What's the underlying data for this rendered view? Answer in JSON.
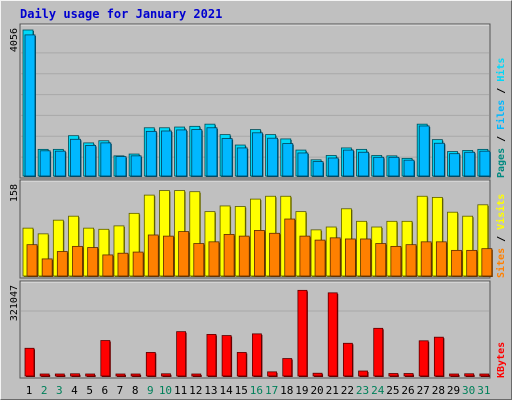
{
  "chart_data": {
    "title": "Daily usage for January 2021",
    "type": "bar",
    "categories": [
      "1",
      "2",
      "3",
      "4",
      "5",
      "6",
      "7",
      "8",
      "9",
      "10",
      "11",
      "12",
      "13",
      "14",
      "15",
      "16",
      "17",
      "18",
      "19",
      "20",
      "21",
      "22",
      "23",
      "24",
      "25",
      "26",
      "27",
      "28",
      "29",
      "30",
      "31"
    ],
    "weekend_days": [
      "2",
      "3",
      "9",
      "10",
      "16",
      "17",
      "23",
      "24",
      "30",
      "31"
    ],
    "panels": [
      {
        "id": "hits-files",
        "max_label": "4056",
        "ylim": [
          0,
          4056
        ],
        "legend": [
          "Pages",
          "Files",
          "Hits"
        ],
        "legend_sep": "/",
        "series": [
          {
            "name": "Hits",
            "color": "#00d8f8",
            "values": [
              4056,
              740,
              740,
              1120,
              920,
              980,
              560,
              610,
              1340,
              1340,
              1360,
              1380,
              1440,
              1150,
              860,
              1290,
              1150,
              1030,
              720,
              450,
              570,
              780,
              740,
              570,
              560,
              490,
              1440,
              1010,
              680,
              710,
              740
            ]
          },
          {
            "name": "Files",
            "color": "#00b8ff",
            "values": [
              3920,
              700,
              690,
              1020,
              850,
              920,
              540,
              560,
              1240,
              1250,
              1280,
              1290,
              1340,
              1040,
              780,
              1200,
              1050,
              900,
              640,
              400,
              500,
              720,
              660,
              520,
              520,
              440,
              1390,
              910,
              620,
              660,
              690
            ]
          },
          {
            "name": "Pages",
            "color": "#008a80",
            "values": [
              0,
              0,
              0,
              0,
              0,
              0,
              0,
              0,
              0,
              0,
              0,
              0,
              0,
              0,
              0,
              0,
              0,
              0,
              0,
              0,
              0,
              0,
              0,
              0,
              0,
              0,
              0,
              0,
              0,
              0,
              0
            ]
          }
        ]
      },
      {
        "id": "visits-sites",
        "max_label": "158",
        "ylim": [
          0,
          158
        ],
        "legend": [
          "Sites",
          "Visits"
        ],
        "legend_sep": "/",
        "series": [
          {
            "name": "Visits",
            "color": "#ffff00",
            "values": [
              84,
              74,
              98,
              105,
              84,
              82,
              88,
              110,
              142,
              150,
              150,
              148,
              113,
              123,
              122,
              135,
              140,
              140,
              113,
              81,
              86,
              118,
              96,
              86,
              96,
              96,
              140,
              138,
              112,
              105,
              125
            ]
          },
          {
            "name": "Sites",
            "color": "#ff8000",
            "values": [
              55,
              30,
              43,
              52,
              50,
              37,
              40,
              42,
              72,
              70,
              78,
              57,
              60,
              73,
              70,
              80,
              75,
              100,
              70,
              63,
              67,
              65,
              65,
              57,
              52,
              55,
              60,
              60,
              45,
              45,
              48
            ]
          }
        ]
      },
      {
        "id": "kbytes",
        "max_label": "321047",
        "ylim": [
          0,
          321047
        ],
        "legend": [
          "KBytes"
        ],
        "legend_sep": "",
        "series": [
          {
            "name": "KBytes",
            "color": "#ff0000",
            "values": [
              100000,
              5000,
              5000,
              8000,
              5000,
              128000,
              7000,
              7000,
              85000,
              8000,
              160000,
              5000,
              150000,
              146000,
              85000,
              152000,
              15000,
              63000,
              309000,
              10000,
              300000,
              118000,
              18000,
              172000,
              9000,
              9000,
              127000,
              140000,
              6000,
              8000,
              6000
            ]
          }
        ]
      }
    ]
  }
}
